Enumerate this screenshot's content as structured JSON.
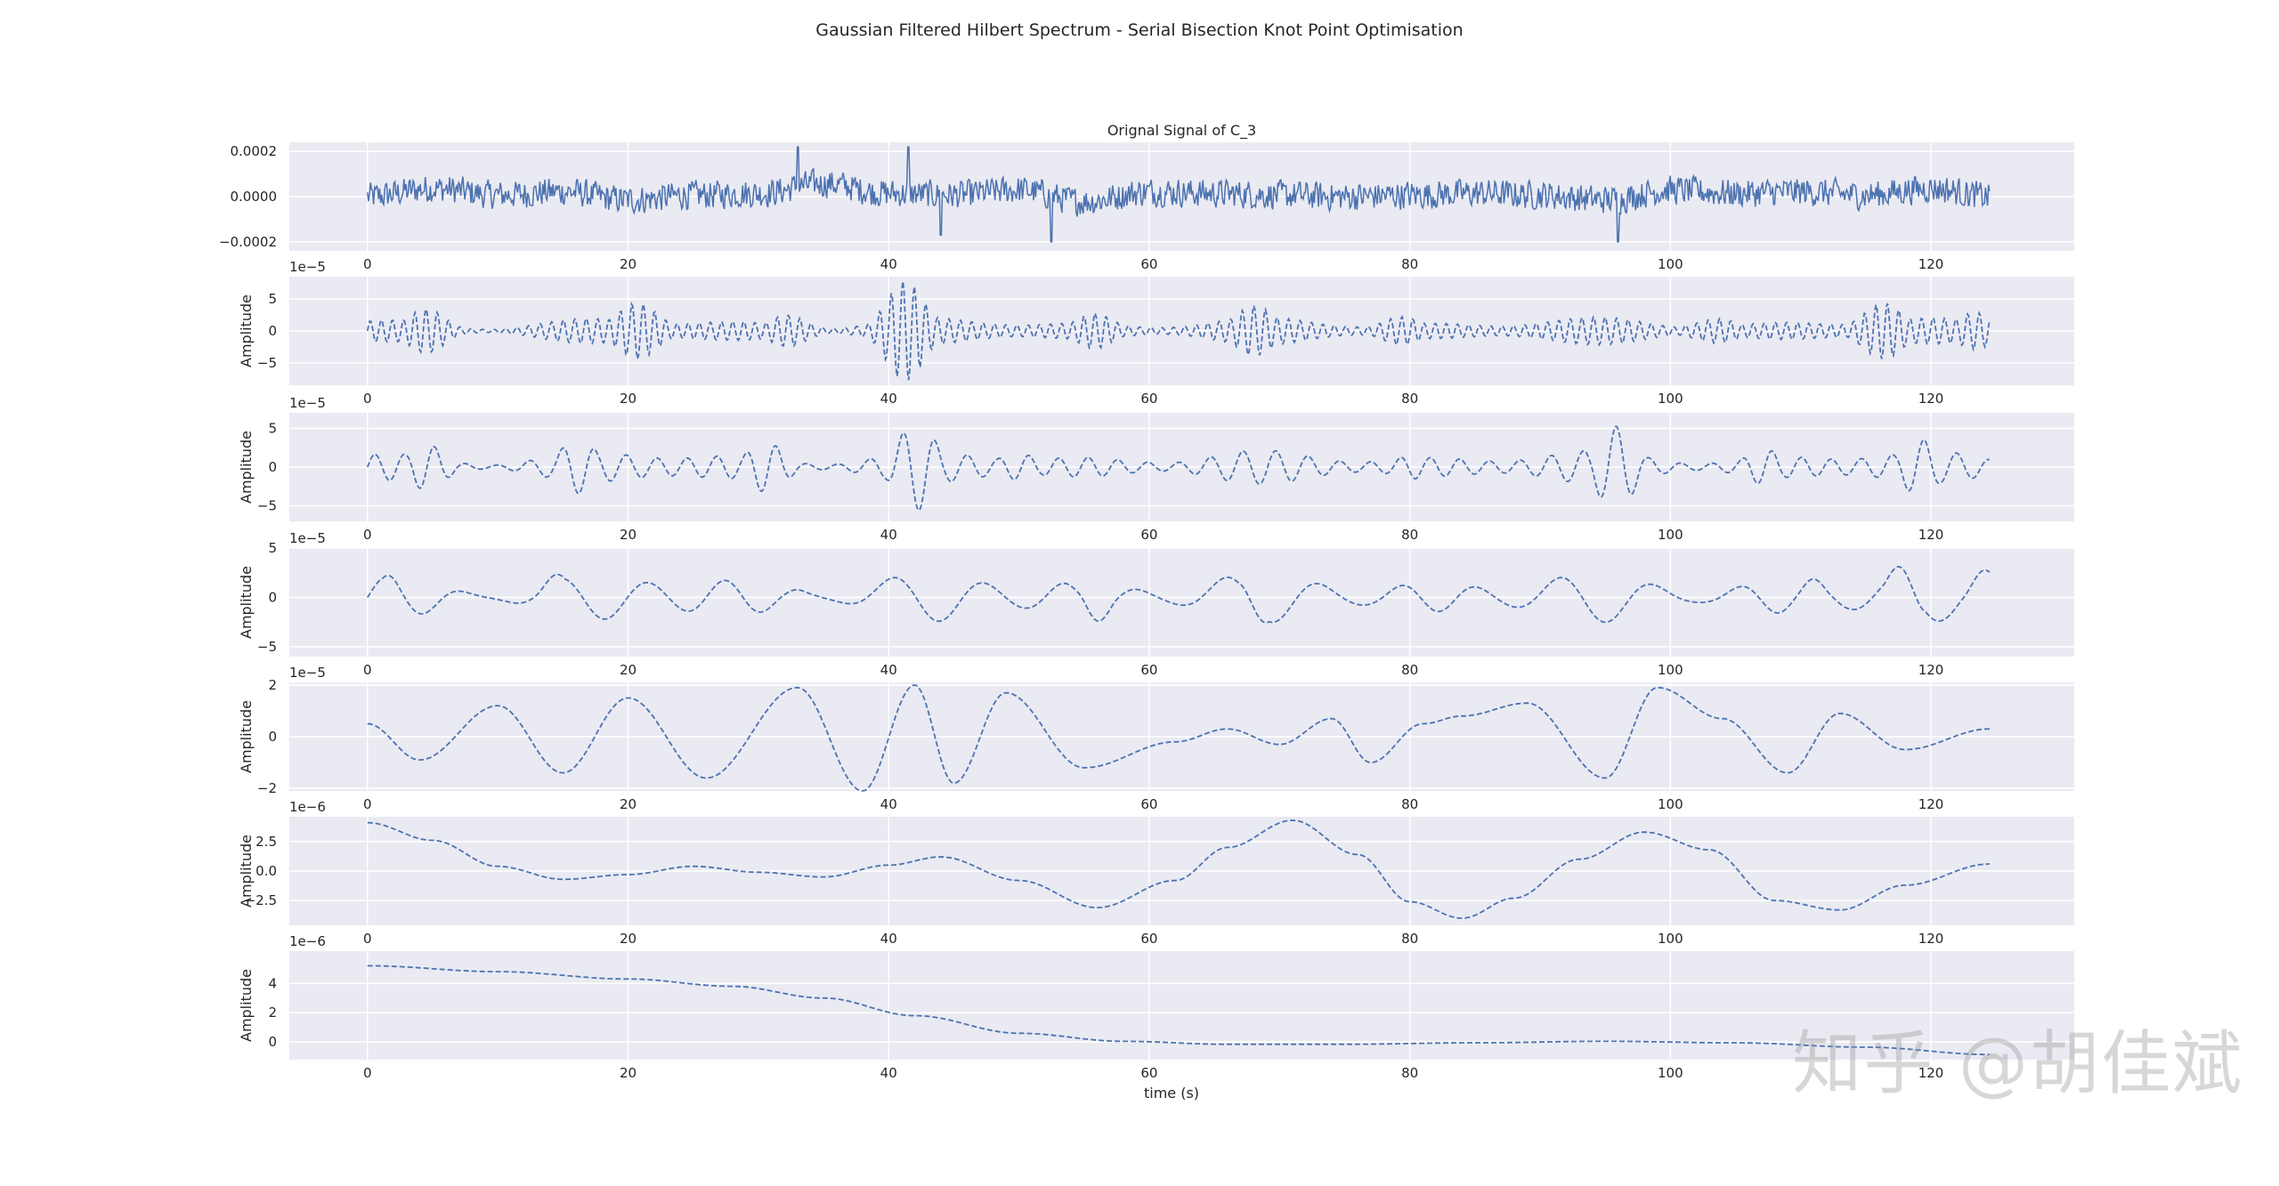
{
  "title": "Gaussian Filtered Hilbert Spectrum - Serial Bisection Knot Point Optimisation",
  "watermark": "知乎 @胡佳斌",
  "colors": {
    "line": "#4c72b0",
    "panel": "#eaeaf2",
    "grid": "#ffffff",
    "text": "#262626"
  },
  "chart_data": {
    "type": "line",
    "grid": true,
    "x_ticks": [
      0,
      20,
      40,
      60,
      80,
      100,
      120
    ],
    "xlim": [
      -6,
      131
    ],
    "xlabel": "time (s)",
    "panels": [
      {
        "title": "Orignal Signal of C_3",
        "ylabel": "",
        "offset_text": "",
        "ylim": [
          -0.00024,
          0.00024
        ],
        "yticks": [
          -0.0002,
          0,
          0.0002
        ],
        "ytick_labels": [
          "−0.0002",
          "0.0000",
          "0.0002"
        ],
        "line_style": "solid",
        "gen": {
          "kind": "noise",
          "amp": 6e-05,
          "n": 1600,
          "spikes": [
            [
              33,
              0.00022
            ],
            [
              41.5,
              0.00022
            ],
            [
              52.5,
              -0.0002
            ],
            [
              96,
              -0.0002
            ],
            [
              44,
              -0.00017
            ]
          ]
        },
        "x": [
          0,
          5,
          10,
          15,
          20,
          25,
          30,
          35,
          40,
          45,
          50,
          55,
          60,
          65,
          70,
          75,
          80,
          85,
          90,
          95,
          100,
          105,
          110,
          115,
          120,
          124.5
        ],
        "y": [
          0.0,
          5e-05,
          1e-05,
          3e-05,
          -2e-05,
          1e-05,
          2e-05,
          8e-05,
          2e-05,
          1e-05,
          4e-05,
          -3e-05,
          3e-05,
          2e-05,
          1e-05,
          0.0,
          1e-05,
          2e-05,
          1e-05,
          -2e-05,
          4e-05,
          2e-05,
          3e-05,
          1e-05,
          5e-05,
          0.0
        ]
      },
      {
        "title": "",
        "ylabel": "Amplitude",
        "offset_text": "1e−5",
        "ylim": [
          -8.5,
          8.5
        ],
        "yticks": [
          -5,
          0,
          5
        ],
        "ytick_labels": [
          "−5",
          "0",
          "5"
        ],
        "line_style": "dashed",
        "gen": {
          "kind": "osc",
          "freq": 1.15,
          "base": 2.2,
          "bursts": [
            [
              5,
              6
            ],
            [
              21,
              7
            ],
            [
              33,
              8
            ],
            [
              41,
              9
            ],
            [
              56,
              5
            ],
            [
              68,
              4
            ],
            [
              79,
              5
            ],
            [
              103,
              8
            ],
            [
              116,
              7
            ],
            [
              124,
              5
            ]
          ]
        },
        "x": [
          0,
          5,
          10,
          20,
          21,
          33,
          41,
          56,
          68,
          79,
          103,
          116,
          124.5
        ],
        "y": [
          0.2,
          6,
          2.2,
          2.2,
          7,
          8,
          9,
          5,
          4,
          5,
          8,
          7,
          5
        ]
      },
      {
        "title": "",
        "ylabel": "Amplitude",
        "offset_text": "1e−5",
        "ylim": [
          -7,
          7
        ],
        "yticks": [
          -5,
          0,
          5
        ],
        "ytick_labels": [
          "−5",
          "0",
          "5"
        ],
        "line_style": "dashed",
        "gen": {
          "kind": "osc",
          "freq": 0.42,
          "base": 2.2,
          "bursts": [
            [
              5,
              5
            ],
            [
              16,
              4
            ],
            [
              31,
              6.2
            ],
            [
              42,
              6
            ],
            [
              50,
              4
            ],
            [
              60,
              2.5
            ],
            [
              80,
              3
            ],
            [
              96,
              5.8
            ],
            [
              107,
              4
            ],
            [
              119,
              4
            ]
          ]
        },
        "x": [
          0,
          5,
          16,
          31,
          42,
          50,
          60,
          80,
          96,
          107,
          119,
          124.5
        ],
        "y": [
          0.2,
          5,
          4,
          6.2,
          6,
          4,
          2.5,
          3,
          5.8,
          4,
          4,
          1
        ]
      },
      {
        "title": "",
        "ylabel": "Amplitude",
        "offset_text": "1e−5",
        "ylim": [
          -6,
          5
        ],
        "yticks": [
          -5,
          0,
          5
        ],
        "ytick_labels": [
          "−5",
          "0",
          "5"
        ],
        "line_style": "dashed",
        "gen": {
          "kind": "osc",
          "freq": 0.155,
          "base": 2.6,
          "bursts": [
            [
              2,
              3
            ],
            [
              14,
              3.5
            ],
            [
              33,
              3
            ],
            [
              56,
              4.5
            ],
            [
              68,
              3.5
            ],
            [
              100,
              2.5
            ],
            [
              111,
              3.5
            ],
            [
              118,
              4.5
            ],
            [
              124.5,
              5.8
            ]
          ]
        },
        "x": [
          0,
          2,
          14,
          33,
          56,
          68,
          100,
          111,
          118,
          124.5
        ],
        "y": [
          -3,
          3,
          3.5,
          3,
          4.5,
          3.5,
          2.5,
          3.5,
          4.5,
          -5.8
        ]
      },
      {
        "title": "",
        "ylabel": "Amplitude",
        "offset_text": "1e−5",
        "ylim": [
          -2.1,
          2.1
        ],
        "yticks": [
          -2,
          0,
          2
        ],
        "ytick_labels": [
          "−2",
          "0",
          "2"
        ],
        "line_style": "dashed",
        "x": [
          0,
          4,
          10,
          15,
          20,
          26,
          33,
          38,
          42,
          45,
          49,
          55,
          62,
          66,
          70,
          74,
          77,
          81,
          84,
          89,
          95,
          99,
          104,
          109,
          113,
          118,
          124.5
        ],
        "y": [
          0.5,
          -0.9,
          1.2,
          -1.4,
          1.5,
          -1.6,
          1.9,
          -2.1,
          2.0,
          -1.8,
          1.7,
          -1.2,
          -0.2,
          0.3,
          -0.3,
          0.7,
          -1.0,
          0.5,
          0.8,
          1.3,
          -1.6,
          1.9,
          0.7,
          -1.4,
          0.9,
          -0.5,
          0.3
        ]
      },
      {
        "title": "",
        "ylabel": "Amplitude",
        "offset_text": "1e−6",
        "ylim": [
          -4.6,
          4.6
        ],
        "yticks": [
          -2.5,
          0,
          2.5
        ],
        "ytick_labels": [
          "−2.5",
          "0.0",
          "2.5"
        ],
        "line_style": "dashed",
        "x": [
          0,
          5,
          10,
          15,
          20,
          25,
          30,
          35,
          40,
          44,
          50,
          56,
          62,
          66,
          71,
          76,
          80,
          84,
          88,
          93,
          98,
          103,
          108,
          113,
          118,
          124.5
        ],
        "y": [
          4.1,
          2.6,
          0.4,
          -0.7,
          -0.3,
          0.4,
          -0.1,
          -0.5,
          0.5,
          1.2,
          -0.8,
          -3.1,
          -0.8,
          2.0,
          4.3,
          1.4,
          -2.6,
          -4.0,
          -2.3,
          1.0,
          3.3,
          1.8,
          -2.5,
          -3.3,
          -1.2,
          0.6
        ]
      },
      {
        "title": "",
        "ylabel": "Amplitude",
        "offset_text": "1e−6",
        "ylim": [
          -1.2,
          6.2
        ],
        "yticks": [
          0,
          2,
          4
        ],
        "ytick_labels": [
          "0",
          "2",
          "4"
        ],
        "line_style": "dashed",
        "x": [
          0,
          10,
          20,
          28,
          35,
          42,
          50,
          58,
          66,
          75,
          85,
          95,
          105,
          115,
          124.5
        ],
        "y": [
          5.2,
          4.8,
          4.3,
          3.8,
          3.0,
          1.8,
          0.6,
          0.05,
          -0.15,
          -0.15,
          -0.05,
          0.05,
          -0.05,
          -0.35,
          -0.85
        ]
      }
    ]
  }
}
